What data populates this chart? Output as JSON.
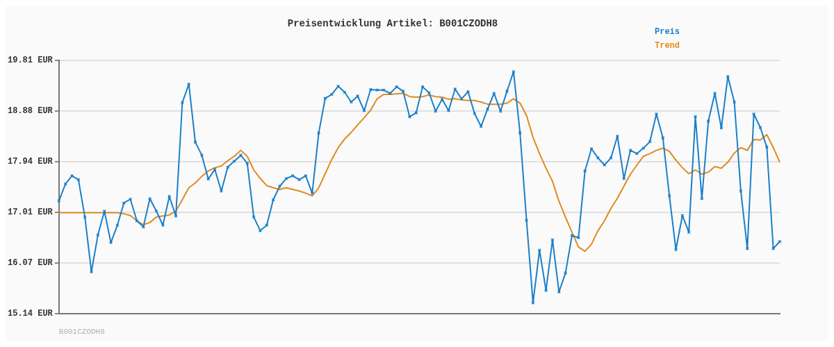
{
  "chart_data": {
    "type": "line",
    "title": "Preisentwicklung Artikel: B001CZODH8",
    "categories": [
      null,
      null,
      null,
      null,
      null,
      null,
      null,
      null,
      null,
      null,
      null,
      null,
      null,
      null,
      null,
      null,
      null,
      null,
      null,
      null,
      null,
      null,
      null,
      null,
      null,
      null,
      null,
      null,
      null,
      null,
      null,
      null,
      null,
      null,
      null,
      null,
      null,
      null,
      null,
      null,
      null,
      null,
      null,
      null,
      null,
      null,
      null,
      null,
      null,
      null,
      null,
      null,
      null,
      null,
      null,
      null,
      null,
      null,
      null,
      null,
      null,
      null,
      null,
      null,
      null,
      null,
      null,
      null,
      null,
      null,
      null,
      null,
      null,
      null,
      null,
      null,
      null,
      null,
      null,
      null,
      null,
      null,
      null,
      null,
      null,
      null,
      null,
      null,
      null,
      null,
      null,
      null,
      null,
      null,
      null,
      null,
      null,
      null,
      null,
      null,
      null,
      null,
      null,
      null,
      null,
      null,
      null,
      null,
      null,
      null,
      null,
      null
    ],
    "series": [
      {
        "name": "Preis",
        "color": "#1a7fc9",
        "marker": "cross",
        "values": [
          17.22,
          17.53,
          17.68,
          17.61,
          16.92,
          15.91,
          16.59,
          17.03,
          16.45,
          16.77,
          17.18,
          17.25,
          16.85,
          16.74,
          17.26,
          17.03,
          16.77,
          17.3,
          16.94,
          19.03,
          19.37,
          18.3,
          18.06,
          17.62,
          17.8,
          17.4,
          17.84,
          17.95,
          18.06,
          17.91,
          16.92,
          16.67,
          16.77,
          17.24,
          17.49,
          17.63,
          17.68,
          17.61,
          17.68,
          17.36,
          18.47,
          19.11,
          19.18,
          19.33,
          19.22,
          19.04,
          19.15,
          18.88,
          19.27,
          19.26,
          19.26,
          19.2,
          19.32,
          19.24,
          18.77,
          18.84,
          19.32,
          19.21,
          18.87,
          19.09,
          18.88,
          19.28,
          19.1,
          19.23,
          18.83,
          18.59,
          18.91,
          19.2,
          18.87,
          19.24,
          19.6,
          18.47,
          16.86,
          15.34,
          16.31,
          15.57,
          16.5,
          15.54,
          15.89,
          16.58,
          16.54,
          17.77,
          18.18,
          18.01,
          17.88,
          18.01,
          18.41,
          17.63,
          18.15,
          18.09,
          18.19,
          18.31,
          18.82,
          18.38,
          17.31,
          16.32,
          16.95,
          16.64,
          18.77,
          17.26,
          18.69,
          19.2,
          18.56,
          19.51,
          19.04,
          17.4,
          16.34,
          18.82,
          18.57,
          18.21,
          16.34,
          16.47
        ]
      },
      {
        "name": "Trend",
        "color": "#e08a1e",
        "marker": "none",
        "values": [
          17.0,
          17.0,
          17.0,
          17.0,
          17.0,
          17.0,
          17.0,
          17.0,
          17.0,
          17.0,
          16.98,
          16.95,
          16.85,
          16.78,
          16.82,
          16.92,
          16.94,
          16.96,
          17.03,
          17.24,
          17.46,
          17.55,
          17.67,
          17.77,
          17.83,
          17.86,
          17.96,
          18.04,
          18.15,
          18.04,
          17.79,
          17.63,
          17.5,
          17.46,
          17.43,
          17.46,
          17.43,
          17.4,
          17.36,
          17.31,
          17.46,
          17.72,
          17.98,
          18.2,
          18.36,
          18.48,
          18.62,
          18.75,
          18.89,
          19.1,
          19.18,
          19.18,
          19.19,
          19.2,
          19.14,
          19.13,
          19.14,
          19.17,
          19.14,
          19.13,
          19.09,
          19.1,
          19.08,
          19.07,
          19.07,
          19.04,
          19.0,
          19.0,
          19.0,
          19.02,
          19.1,
          19.02,
          18.79,
          18.39,
          18.09,
          17.82,
          17.58,
          17.21,
          16.92,
          16.64,
          16.37,
          16.29,
          16.42,
          16.67,
          16.85,
          17.08,
          17.27,
          17.49,
          17.71,
          17.88,
          18.04,
          18.09,
          18.15,
          18.19,
          18.13,
          17.97,
          17.83,
          17.72,
          17.79,
          17.71,
          17.75,
          17.85,
          17.82,
          17.93,
          18.1,
          18.2,
          18.15,
          18.35,
          18.34,
          18.44,
          18.2,
          17.93
        ]
      }
    ],
    "ylim": [
      15.14,
      19.81
    ],
    "yticks": [
      {
        "value": 15.14,
        "label": "15.14 EUR"
      },
      {
        "value": 16.07,
        "label": "16.07 EUR"
      },
      {
        "value": 17.01,
        "label": "17.01 EUR"
      },
      {
        "value": 17.94,
        "label": "17.94 EUR"
      },
      {
        "value": 18.88,
        "label": "18.88 EUR"
      },
      {
        "value": 19.81,
        "label": "19.81 EUR"
      }
    ],
    "grid": "y",
    "legend": "top right",
    "tick_labels": "y",
    "line_style": "solid",
    "annotations": [
      "B001CZODH8"
    ]
  }
}
